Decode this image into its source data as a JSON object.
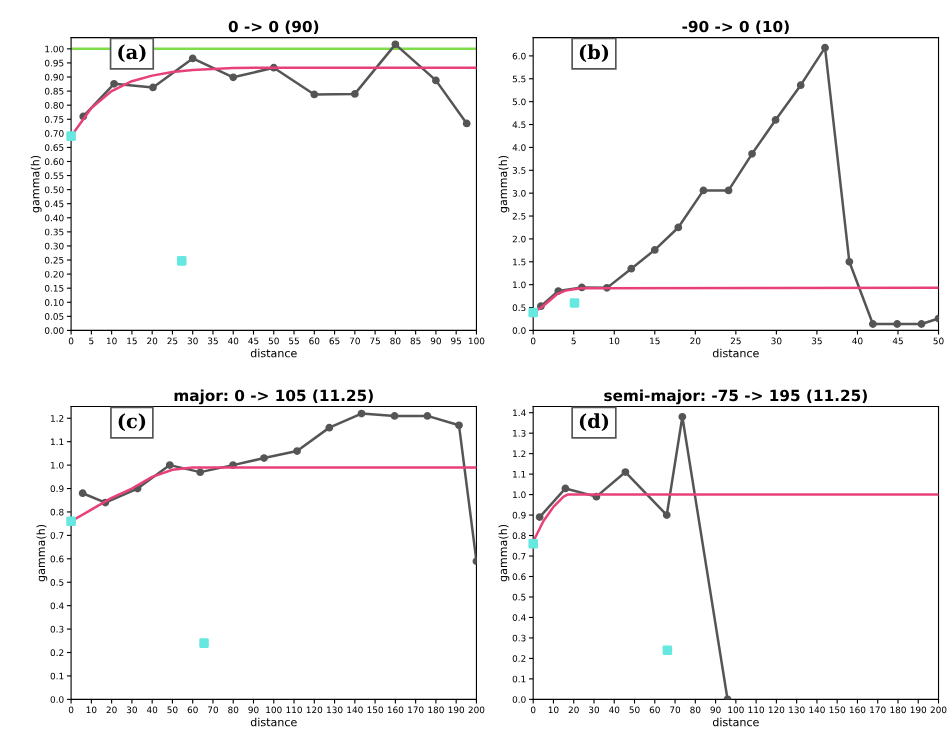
{
  "chart_data": [
    {
      "type": "line",
      "title": "0 -> 0 (90)",
      "xlabel": "distance",
      "ylabel": "gamma(h)",
      "annotations": [
        "(a)"
      ],
      "xlim": [
        0,
        100
      ],
      "ylim": [
        0,
        1.04
      ],
      "xticks": [
        0,
        5,
        10,
        15,
        20,
        25,
        30,
        35,
        40,
        45,
        50,
        55,
        60,
        65,
        70,
        75,
        80,
        85,
        90,
        95,
        100
      ],
      "yticks": [
        {
          "value": 0,
          "label": "0.00"
        },
        {
          "value": 0.05,
          "label": "0.05"
        },
        {
          "value": 0.1,
          "label": "0.10"
        },
        {
          "value": 0.15,
          "label": "0.15"
        },
        {
          "value": 0.2,
          "label": "0.20"
        },
        {
          "value": 0.25,
          "label": "0.25"
        },
        {
          "value": 0.3,
          "label": "0.30"
        },
        {
          "value": 0.35,
          "label": "0.35"
        },
        {
          "value": 0.4,
          "label": "0.40"
        },
        {
          "value": 0.45,
          "label": "0.45"
        },
        {
          "value": 0.5,
          "label": "0.50"
        },
        {
          "value": 0.55,
          "label": "0.55"
        },
        {
          "value": 0.6,
          "label": "0.60"
        },
        {
          "value": 0.65,
          "label": "0.65"
        },
        {
          "value": 0.7,
          "label": "0.70"
        },
        {
          "value": 0.75,
          "label": "0.75"
        },
        {
          "value": 0.8,
          "label": "0.80"
        },
        {
          "value": 0.85,
          "label": "0.85"
        },
        {
          "value": 0.9,
          "label": "0.90"
        },
        {
          "value": 0.95,
          "label": "0.95"
        },
        {
          "value": 1.0,
          "label": "1.00"
        }
      ],
      "ref_lines": [
        {
          "axis": "y",
          "value": 1.0,
          "color": "#7fdd4c"
        }
      ],
      "series": [
        {
          "type": "line",
          "color": "#555555",
          "marker": "circle",
          "x": [
            3,
            10.6,
            20.2,
            30,
            40,
            50,
            60,
            70,
            80,
            90,
            97.6
          ],
          "values": [
            0.76,
            0.876,
            0.863,
            0.966,
            0.899,
            0.933,
            0.838,
            0.84,
            1.016,
            0.888,
            0.735
          ]
        },
        {
          "type": "line",
          "color": "#e8417a",
          "x": [
            0,
            5,
            10,
            15,
            20,
            25,
            30,
            40,
            50,
            100
          ],
          "values": [
            0.69,
            0.79,
            0.85,
            0.885,
            0.905,
            0.918,
            0.925,
            0.932,
            0.933,
            0.933
          ]
        },
        {
          "type": "scatter",
          "color": "#66e8e0",
          "marker": "square",
          "x": [
            0,
            27.3
          ],
          "values": [
            0.69,
            0.247
          ]
        }
      ]
    },
    {
      "type": "line",
      "title": "-90 -> 0 (10)",
      "xlabel": "distance",
      "ylabel": "gamma(h)",
      "annotations": [
        "(b)"
      ],
      "xlim": [
        0,
        50
      ],
      "ylim": [
        0,
        6.4
      ],
      "xticks": [
        0,
        5,
        10,
        15,
        20,
        25,
        30,
        35,
        40,
        45,
        50
      ],
      "yticks": [
        {
          "value": 0,
          "label": "0.0"
        },
        {
          "value": 0.5,
          "label": "0.5"
        },
        {
          "value": 1,
          "label": "1.0"
        },
        {
          "value": 1.5,
          "label": "1.5"
        },
        {
          "value": 2,
          "label": "2.0"
        },
        {
          "value": 2.5,
          "label": "2.5"
        },
        {
          "value": 3,
          "label": "3.0"
        },
        {
          "value": 3.5,
          "label": "3.5"
        },
        {
          "value": 4,
          "label": "4.0"
        },
        {
          "value": 4.5,
          "label": "4.5"
        },
        {
          "value": 5,
          "label": "5.0"
        },
        {
          "value": 5.5,
          "label": "5.5"
        },
        {
          "value": 6,
          "label": "6.0"
        }
      ],
      "series": [
        {
          "type": "line",
          "color": "#555555",
          "marker": "circle",
          "x": [
            0.95,
            3.1,
            6,
            9.1,
            12.1,
            15,
            17.9,
            21,
            24.1,
            27,
            29.9,
            33,
            36,
            39,
            41.9,
            44.9,
            47.9,
            50
          ],
          "values": [
            0.53,
            0.86,
            0.94,
            0.93,
            1.35,
            1.76,
            2.25,
            3.06,
            3.06,
            3.86,
            4.6,
            5.36,
            6.18,
            1.5,
            0.14,
            0.14,
            0.14,
            0.26
          ]
        },
        {
          "type": "line",
          "color": "#e8417a",
          "x": [
            0,
            1,
            2,
            3,
            4,
            5,
            6,
            50
          ],
          "values": [
            0.4,
            0.5,
            0.65,
            0.8,
            0.87,
            0.9,
            0.92,
            0.93
          ]
        },
        {
          "type": "scatter",
          "color": "#66e8e0",
          "marker": "square",
          "x": [
            0,
            5.1
          ],
          "values": [
            0.39,
            0.6
          ]
        }
      ]
    },
    {
      "type": "line",
      "title": "major: 0 -> 105 (11.25)",
      "xlabel": "distance",
      "ylabel": "gamma(h)",
      "annotations": [
        "(c)"
      ],
      "xlim": [
        0,
        200
      ],
      "ylim": [
        0,
        1.25
      ],
      "xticks": [
        0,
        10,
        20,
        30,
        40,
        50,
        60,
        70,
        80,
        90,
        100,
        110,
        120,
        130,
        140,
        150,
        160,
        170,
        180,
        190,
        200
      ],
      "yticks": [
        {
          "value": 0,
          "label": "0.0"
        },
        {
          "value": 0.1,
          "label": "0.1"
        },
        {
          "value": 0.2,
          "label": "0.2"
        },
        {
          "value": 0.3,
          "label": "0.3"
        },
        {
          "value": 0.4,
          "label": "0.4"
        },
        {
          "value": 0.5,
          "label": "0.5"
        },
        {
          "value": 0.6,
          "label": "0.6"
        },
        {
          "value": 0.7,
          "label": "0.7"
        },
        {
          "value": 0.8,
          "label": "0.8"
        },
        {
          "value": 0.9,
          "label": "0.9"
        },
        {
          "value": 1.0,
          "label": "1.0"
        },
        {
          "value": 1.1,
          "label": "1.1"
        },
        {
          "value": 1.2,
          "label": "1.2"
        }
      ],
      "series": [
        {
          "type": "line",
          "color": "#555555",
          "marker": "circle",
          "x": [
            5.7,
            16.9,
            32.8,
            48.7,
            63.7,
            79.9,
            95.2,
            111.5,
            127.4,
            143.3,
            159.6,
            175.8,
            191.4,
            200
          ],
          "values": [
            0.88,
            0.84,
            0.9,
            1.0,
            0.97,
            1.0,
            1.03,
            1.06,
            1.16,
            1.22,
            1.21,
            1.21,
            1.17,
            0.59
          ]
        },
        {
          "type": "line",
          "color": "#e8417a",
          "x": [
            0,
            10,
            20,
            30,
            40,
            50,
            60,
            200
          ],
          "values": [
            0.76,
            0.81,
            0.86,
            0.9,
            0.95,
            0.98,
            0.99,
            0.99
          ]
        },
        {
          "type": "scatter",
          "color": "#66e8e0",
          "marker": "square",
          "x": [
            0,
            65.6
          ],
          "values": [
            0.76,
            0.24
          ]
        }
      ]
    },
    {
      "type": "line",
      "title": "semi-major: -75 -> 195 (11.25)",
      "xlabel": "distance",
      "ylabel": "gamma(h)",
      "annotations": [
        "(d)"
      ],
      "xlim": [
        0,
        200
      ],
      "ylim": [
        0,
        1.43
      ],
      "xticks": [
        0,
        10,
        20,
        30,
        40,
        50,
        60,
        70,
        80,
        90,
        100,
        110,
        120,
        130,
        140,
        150,
        160,
        170,
        180,
        190,
        200
      ],
      "yticks": [
        {
          "value": 0,
          "label": "0.0"
        },
        {
          "value": 0.1,
          "label": "0.1"
        },
        {
          "value": 0.2,
          "label": "0.2"
        },
        {
          "value": 0.3,
          "label": "0.3"
        },
        {
          "value": 0.4,
          "label": "0.4"
        },
        {
          "value": 0.5,
          "label": "0.5"
        },
        {
          "value": 0.6,
          "label": "0.6"
        },
        {
          "value": 0.7,
          "label": "0.7"
        },
        {
          "value": 0.8,
          "label": "0.8"
        },
        {
          "value": 0.9,
          "label": "0.9"
        },
        {
          "value": 1.0,
          "label": "1.0"
        },
        {
          "value": 1.1,
          "label": "1.1"
        },
        {
          "value": 1.2,
          "label": "1.2"
        },
        {
          "value": 1.3,
          "label": "1.3"
        },
        {
          "value": 1.4,
          "label": "1.4"
        }
      ],
      "series": [
        {
          "type": "line",
          "color": "#555555",
          "marker": "circle",
          "x": [
            3.2,
            15.9,
            31.2,
            45.5,
            65.9,
            73.6,
            95.9
          ],
          "values": [
            0.89,
            1.03,
            0.99,
            1.11,
            0.9,
            1.38,
            0
          ]
        },
        {
          "type": "line",
          "color": "#e8417a",
          "x": [
            0,
            5,
            10,
            15,
            17,
            200
          ],
          "values": [
            0.77,
            0.87,
            0.94,
            0.99,
            1.0,
            1.0
          ]
        },
        {
          "type": "scatter",
          "color": "#66e8e0",
          "marker": "square",
          "x": [
            0,
            66.2
          ],
          "values": [
            0.76,
            0.24
          ]
        }
      ]
    }
  ]
}
